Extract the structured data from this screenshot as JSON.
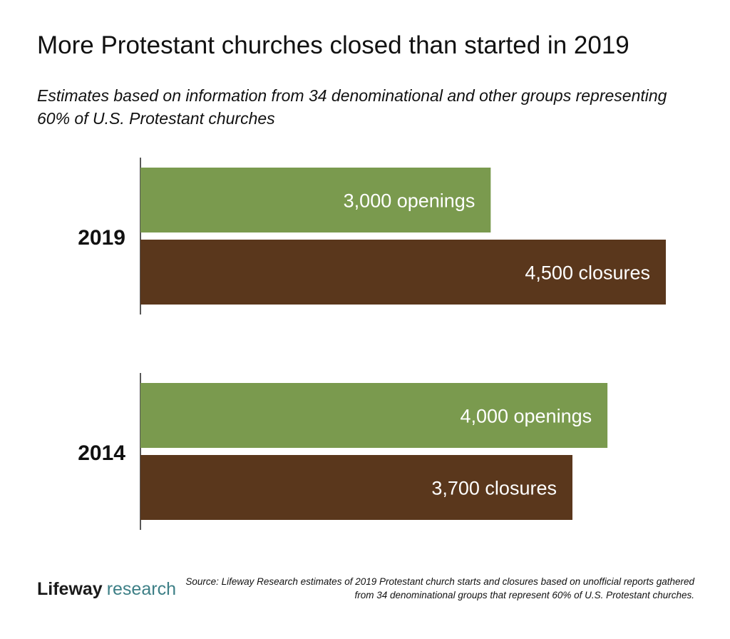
{
  "title": "More Protestant churches closed than started in 2019",
  "subtitle": "Estimates based on information from 34 denominational and other groups representing 60% of U.S. Protestant churches",
  "logo": {
    "part1": "Lifeway",
    "part2": "research"
  },
  "source": "Source: Lifeway Research estimates of 2019 Protestant church starts and closures based on unofficial reports gathered from 34 denominational groups that represent 60% of U.S. Protestant churches.",
  "colors": {
    "openings": "#7a9a4e",
    "closures": "#5a371c",
    "label_text": "#ffffff"
  },
  "chart_data": {
    "type": "bar",
    "orientation": "horizontal",
    "categories": [
      "2019",
      "2014"
    ],
    "series": [
      {
        "name": "openings",
        "values": [
          3000,
          4000
        ]
      },
      {
        "name": "closures",
        "values": [
          4500,
          3700
        ]
      }
    ],
    "data_labels": [
      [
        "3,000 openings",
        "4,500 closures"
      ],
      [
        "4,000 openings",
        "3,700 closures"
      ]
    ],
    "xlim": [
      0,
      4500
    ],
    "grid": false
  }
}
